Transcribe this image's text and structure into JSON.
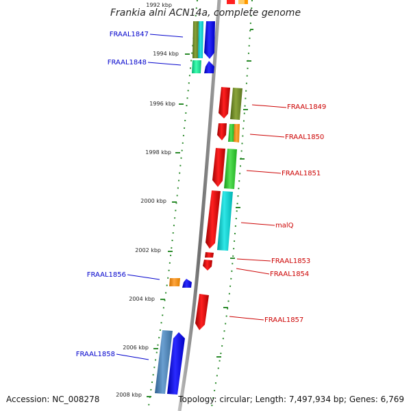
{
  "title": "Frankia alni ACN14a, complete genome",
  "footer": {
    "accession": "Accession: NC_008278",
    "topology": "Topology: circular; Length: 7,497,934 bp; Genes: 6,769"
  },
  "scale_labels": [
    "1992 kbp",
    "1994 kbp",
    "1996 kbp",
    "1998 kbp",
    "2000 kbp",
    "2002 kbp",
    "2004 kbp",
    "2006 kbp",
    "2008 kbp"
  ],
  "left_genes": [
    "FRAAL1847",
    "FRAAL1848",
    "FRAAL1856",
    "FRAAL1858"
  ],
  "right_genes": [
    "FRAAL1849",
    "FRAAL1850",
    "FRAAL1851",
    "malQ",
    "FRAAL1853",
    "FRAAL1854",
    "FRAAL1857"
  ],
  "colors": {
    "left_label": "#0000cc",
    "right_label": "#cc0000",
    "backbone": "#8c8c8c",
    "ticks": "#2a8a2a"
  }
}
